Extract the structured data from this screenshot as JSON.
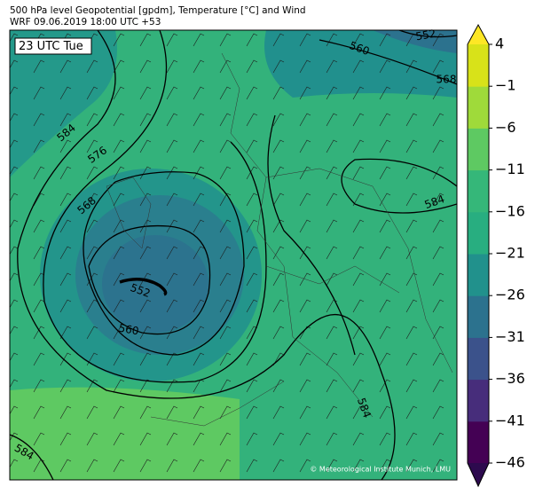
{
  "header": {
    "line1": "500 hPa level Geopotential [gpdm], Temperature [°C] and Wind",
    "line2": "WRF 09.06.2019 18:00 UTC +53"
  },
  "map": {
    "time_label": "23 UTC Tue",
    "contour_labels": [
      "552",
      "560",
      "568",
      "584",
      "576",
      "568",
      "552",
      "560",
      "584",
      "584",
      "584"
    ],
    "credit": "© Meteorological Institute Munich, LMU"
  },
  "colorbar": {
    "range": [
      -46,
      4
    ],
    "ticks": [
      {
        "value": -46,
        "label": "−46"
      },
      {
        "value": -41,
        "label": "−41"
      },
      {
        "value": -36,
        "label": "−36"
      },
      {
        "value": -31,
        "label": "−31"
      },
      {
        "value": -26,
        "label": "−26"
      },
      {
        "value": -21,
        "label": "−21"
      },
      {
        "value": -16,
        "label": "−16"
      },
      {
        "value": -11,
        "label": "−11"
      },
      {
        "value": -6,
        "label": "−6"
      },
      {
        "value": -1,
        "label": "−1"
      },
      4
    ],
    "colors": [
      "#440154",
      "#472d7b",
      "#3b528b",
      "#2c728e",
      "#21918c",
      "#28ae80",
      "#35b779",
      "#5ec962",
      "#9fda3a",
      "#d8e219"
    ]
  }
}
